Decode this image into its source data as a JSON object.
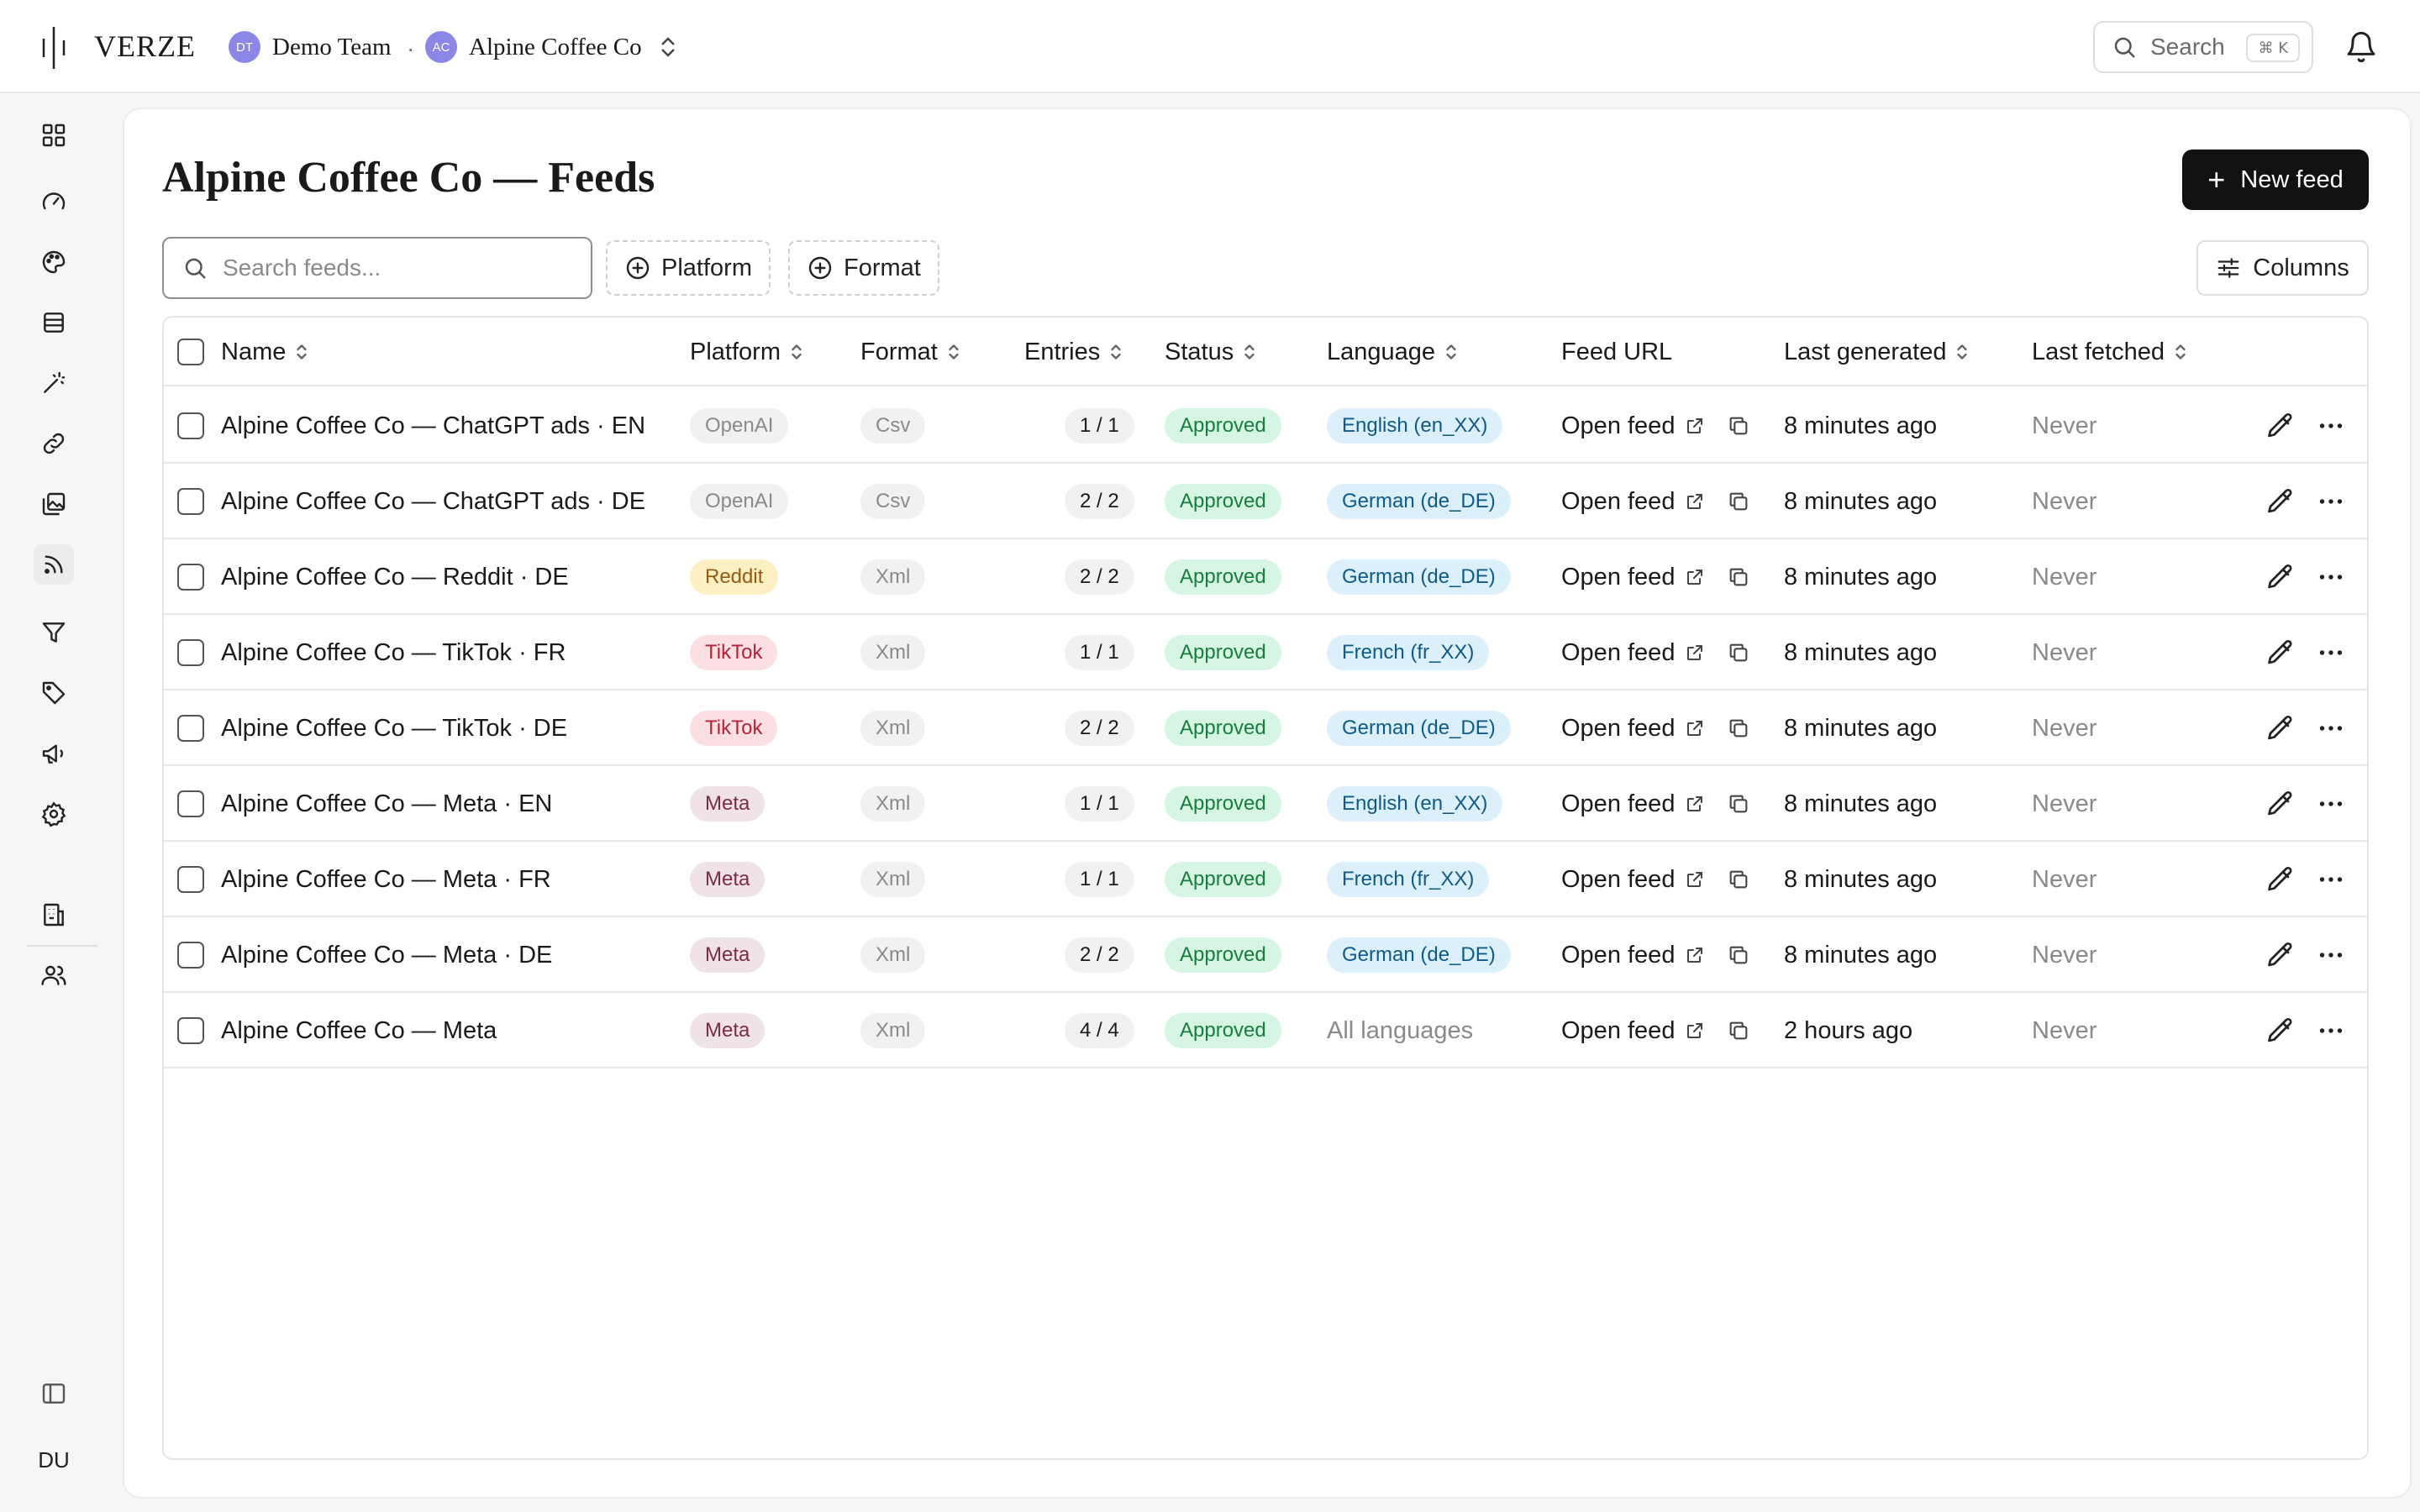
{
  "topbar": {
    "logo_text": "VERZE",
    "team_avatar": "DT",
    "team_name": "Demo Team",
    "separator": "·",
    "brand_avatar": "AC",
    "brand_name": "Alpine Coffee Co",
    "search_label": "Search",
    "search_shortcut": "⌘ K"
  },
  "sidebar": {
    "user_initials": "DU",
    "items": [
      {
        "icon": "grid-icon"
      },
      {
        "icon": "gauge-icon"
      },
      {
        "icon": "palette-icon"
      },
      {
        "icon": "database-icon"
      },
      {
        "icon": "magic-wand-icon"
      },
      {
        "icon": "link-icon"
      },
      {
        "icon": "images-icon"
      },
      {
        "icon": "rss-icon",
        "active": true
      },
      {
        "icon": "filter-icon"
      },
      {
        "icon": "tag-icon"
      },
      {
        "icon": "megaphone-icon"
      },
      {
        "icon": "gear-icon"
      },
      {
        "icon": "building-icon"
      },
      {
        "icon": "users-icon"
      },
      {
        "icon": "sidebar-toggle-icon"
      }
    ]
  },
  "page": {
    "title": "Alpine Coffee Co — Feeds",
    "new_feed_label": "New feed",
    "search_placeholder": "Search feeds...",
    "filter_platform": "Platform",
    "filter_format": "Format",
    "columns_label": "Columns"
  },
  "table": {
    "columns": [
      "Name",
      "Platform",
      "Format",
      "Entries",
      "Status",
      "Language",
      "Feed URL",
      "Last generated",
      "Last fetched"
    ],
    "rows": [
      {
        "name": "Alpine Coffee Co — ChatGPT ads · EN",
        "platform": "OpenAI",
        "platform_style": "gray",
        "format": "Csv",
        "entries": "1 / 1",
        "status": "Approved",
        "language": "English (en_XX)",
        "language_pill": true,
        "feed_url": "Open feed",
        "last_generated": "8 minutes ago",
        "last_fetched": "Never"
      },
      {
        "name": "Alpine Coffee Co — ChatGPT ads · DE",
        "platform": "OpenAI",
        "platform_style": "gray",
        "format": "Csv",
        "entries": "2 / 2",
        "status": "Approved",
        "language": "German (de_DE)",
        "language_pill": true,
        "feed_url": "Open feed",
        "last_generated": "8 minutes ago",
        "last_fetched": "Never"
      },
      {
        "name": "Alpine Coffee Co — Reddit · DE",
        "platform": "Reddit",
        "platform_style": "reddit",
        "format": "Xml",
        "entries": "2 / 2",
        "status": "Approved",
        "language": "German (de_DE)",
        "language_pill": true,
        "feed_url": "Open feed",
        "last_generated": "8 minutes ago",
        "last_fetched": "Never"
      },
      {
        "name": "Alpine Coffee Co — TikTok · FR",
        "platform": "TikTok",
        "platform_style": "tiktok",
        "format": "Xml",
        "entries": "1 / 1",
        "status": "Approved",
        "language": "French (fr_XX)",
        "language_pill": true,
        "feed_url": "Open feed",
        "last_generated": "8 minutes ago",
        "last_fetched": "Never"
      },
      {
        "name": "Alpine Coffee Co — TikTok · DE",
        "platform": "TikTok",
        "platform_style": "tiktok",
        "format": "Xml",
        "entries": "2 / 2",
        "status": "Approved",
        "language": "German (de_DE)",
        "language_pill": true,
        "feed_url": "Open feed",
        "last_generated": "8 minutes ago",
        "last_fetched": "Never"
      },
      {
        "name": "Alpine Coffee Co — Meta · EN",
        "platform": "Meta",
        "platform_style": "meta",
        "format": "Xml",
        "entries": "1 / 1",
        "status": "Approved",
        "language": "English (en_XX)",
        "language_pill": true,
        "feed_url": "Open feed",
        "last_generated": "8 minutes ago",
        "last_fetched": "Never"
      },
      {
        "name": "Alpine Coffee Co — Meta · FR",
        "platform": "Meta",
        "platform_style": "meta",
        "format": "Xml",
        "entries": "1 / 1",
        "status": "Approved",
        "language": "French (fr_XX)",
        "language_pill": true,
        "feed_url": "Open feed",
        "last_generated": "8 minutes ago",
        "last_fetched": "Never"
      },
      {
        "name": "Alpine Coffee Co — Meta · DE",
        "platform": "Meta",
        "platform_style": "meta",
        "format": "Xml",
        "entries": "2 / 2",
        "status": "Approved",
        "language": "German (de_DE)",
        "language_pill": true,
        "feed_url": "Open feed",
        "last_generated": "8 minutes ago",
        "last_fetched": "Never"
      },
      {
        "name": "Alpine Coffee Co — Meta",
        "platform": "Meta",
        "platform_style": "meta",
        "format": "Xml",
        "entries": "4 / 4",
        "status": "Approved",
        "language": "All languages",
        "language_pill": false,
        "feed_url": "Open feed",
        "last_generated": "2 hours ago",
        "last_fetched": "Never"
      }
    ]
  },
  "colors": {
    "accent_dark": "#111111",
    "status_green": "#15803d",
    "language_blue": "#0e5a8a",
    "avatar_purple": "#8a87e6"
  }
}
